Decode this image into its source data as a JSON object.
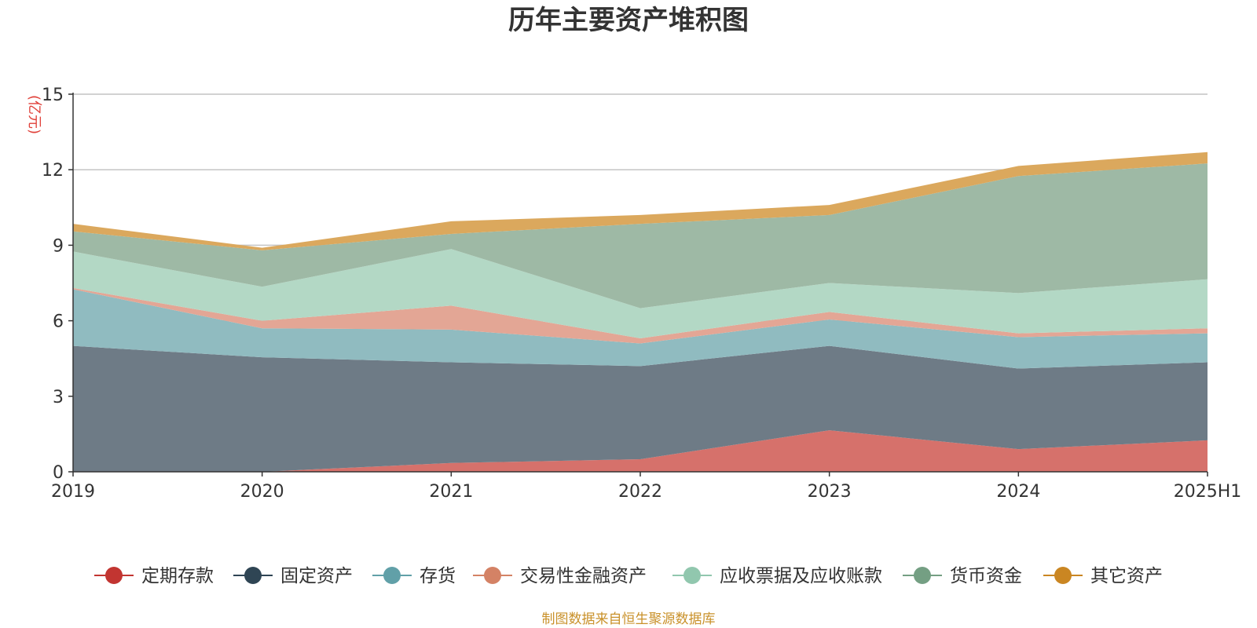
{
  "chart_data": {
    "type": "area",
    "stacked": true,
    "title": "历年主要资产堆积图",
    "ylabel": "(亿元)",
    "ylim": [
      0,
      15
    ],
    "yticks": [
      0,
      3,
      6,
      9,
      12,
      15
    ],
    "categories": [
      "2019",
      "2020",
      "2021",
      "2022",
      "2023",
      "2024",
      "2025H1"
    ],
    "grid": true,
    "legend_position": "bottom",
    "series": [
      {
        "name": "定期存款",
        "color": "#d6716b",
        "legend_color": "#c23531",
        "values": [
          0.0,
          0.0,
          0.35,
          0.5,
          1.65,
          0.9,
          1.25
        ]
      },
      {
        "name": "固定资产",
        "color": "#6e7b86",
        "legend_color": "#2f4554",
        "values": [
          5.0,
          4.55,
          4.0,
          3.7,
          3.35,
          3.2,
          3.1
        ]
      },
      {
        "name": "存货",
        "color": "#90bbc0",
        "legend_color": "#61a0a8",
        "values": [
          2.25,
          1.15,
          1.3,
          0.9,
          1.05,
          1.25,
          1.15
        ]
      },
      {
        "name": "交易性金融资产",
        "color": "#e3a695",
        "legend_color": "#d48265",
        "values": [
          0.05,
          0.3,
          0.95,
          0.2,
          0.3,
          0.15,
          0.2
        ]
      },
      {
        "name": "应收票据及应收账款",
        "color": "#b3d8c5",
        "legend_color": "#91c7ae",
        "values": [
          1.45,
          1.35,
          2.25,
          1.2,
          1.15,
          1.6,
          1.95
        ]
      },
      {
        "name": "货币资金",
        "color": "#9eb9a5",
        "legend_color": "#749f83",
        "values": [
          0.8,
          1.45,
          0.6,
          3.35,
          2.7,
          4.65,
          4.6
        ]
      },
      {
        "name": "其它资产",
        "color": "#dba85d",
        "legend_color": "#ca8622",
        "values": [
          0.3,
          0.1,
          0.5,
          0.35,
          0.4,
          0.4,
          0.45
        ]
      }
    ]
  },
  "source_note": "制图数据来自恒生聚源数据库"
}
